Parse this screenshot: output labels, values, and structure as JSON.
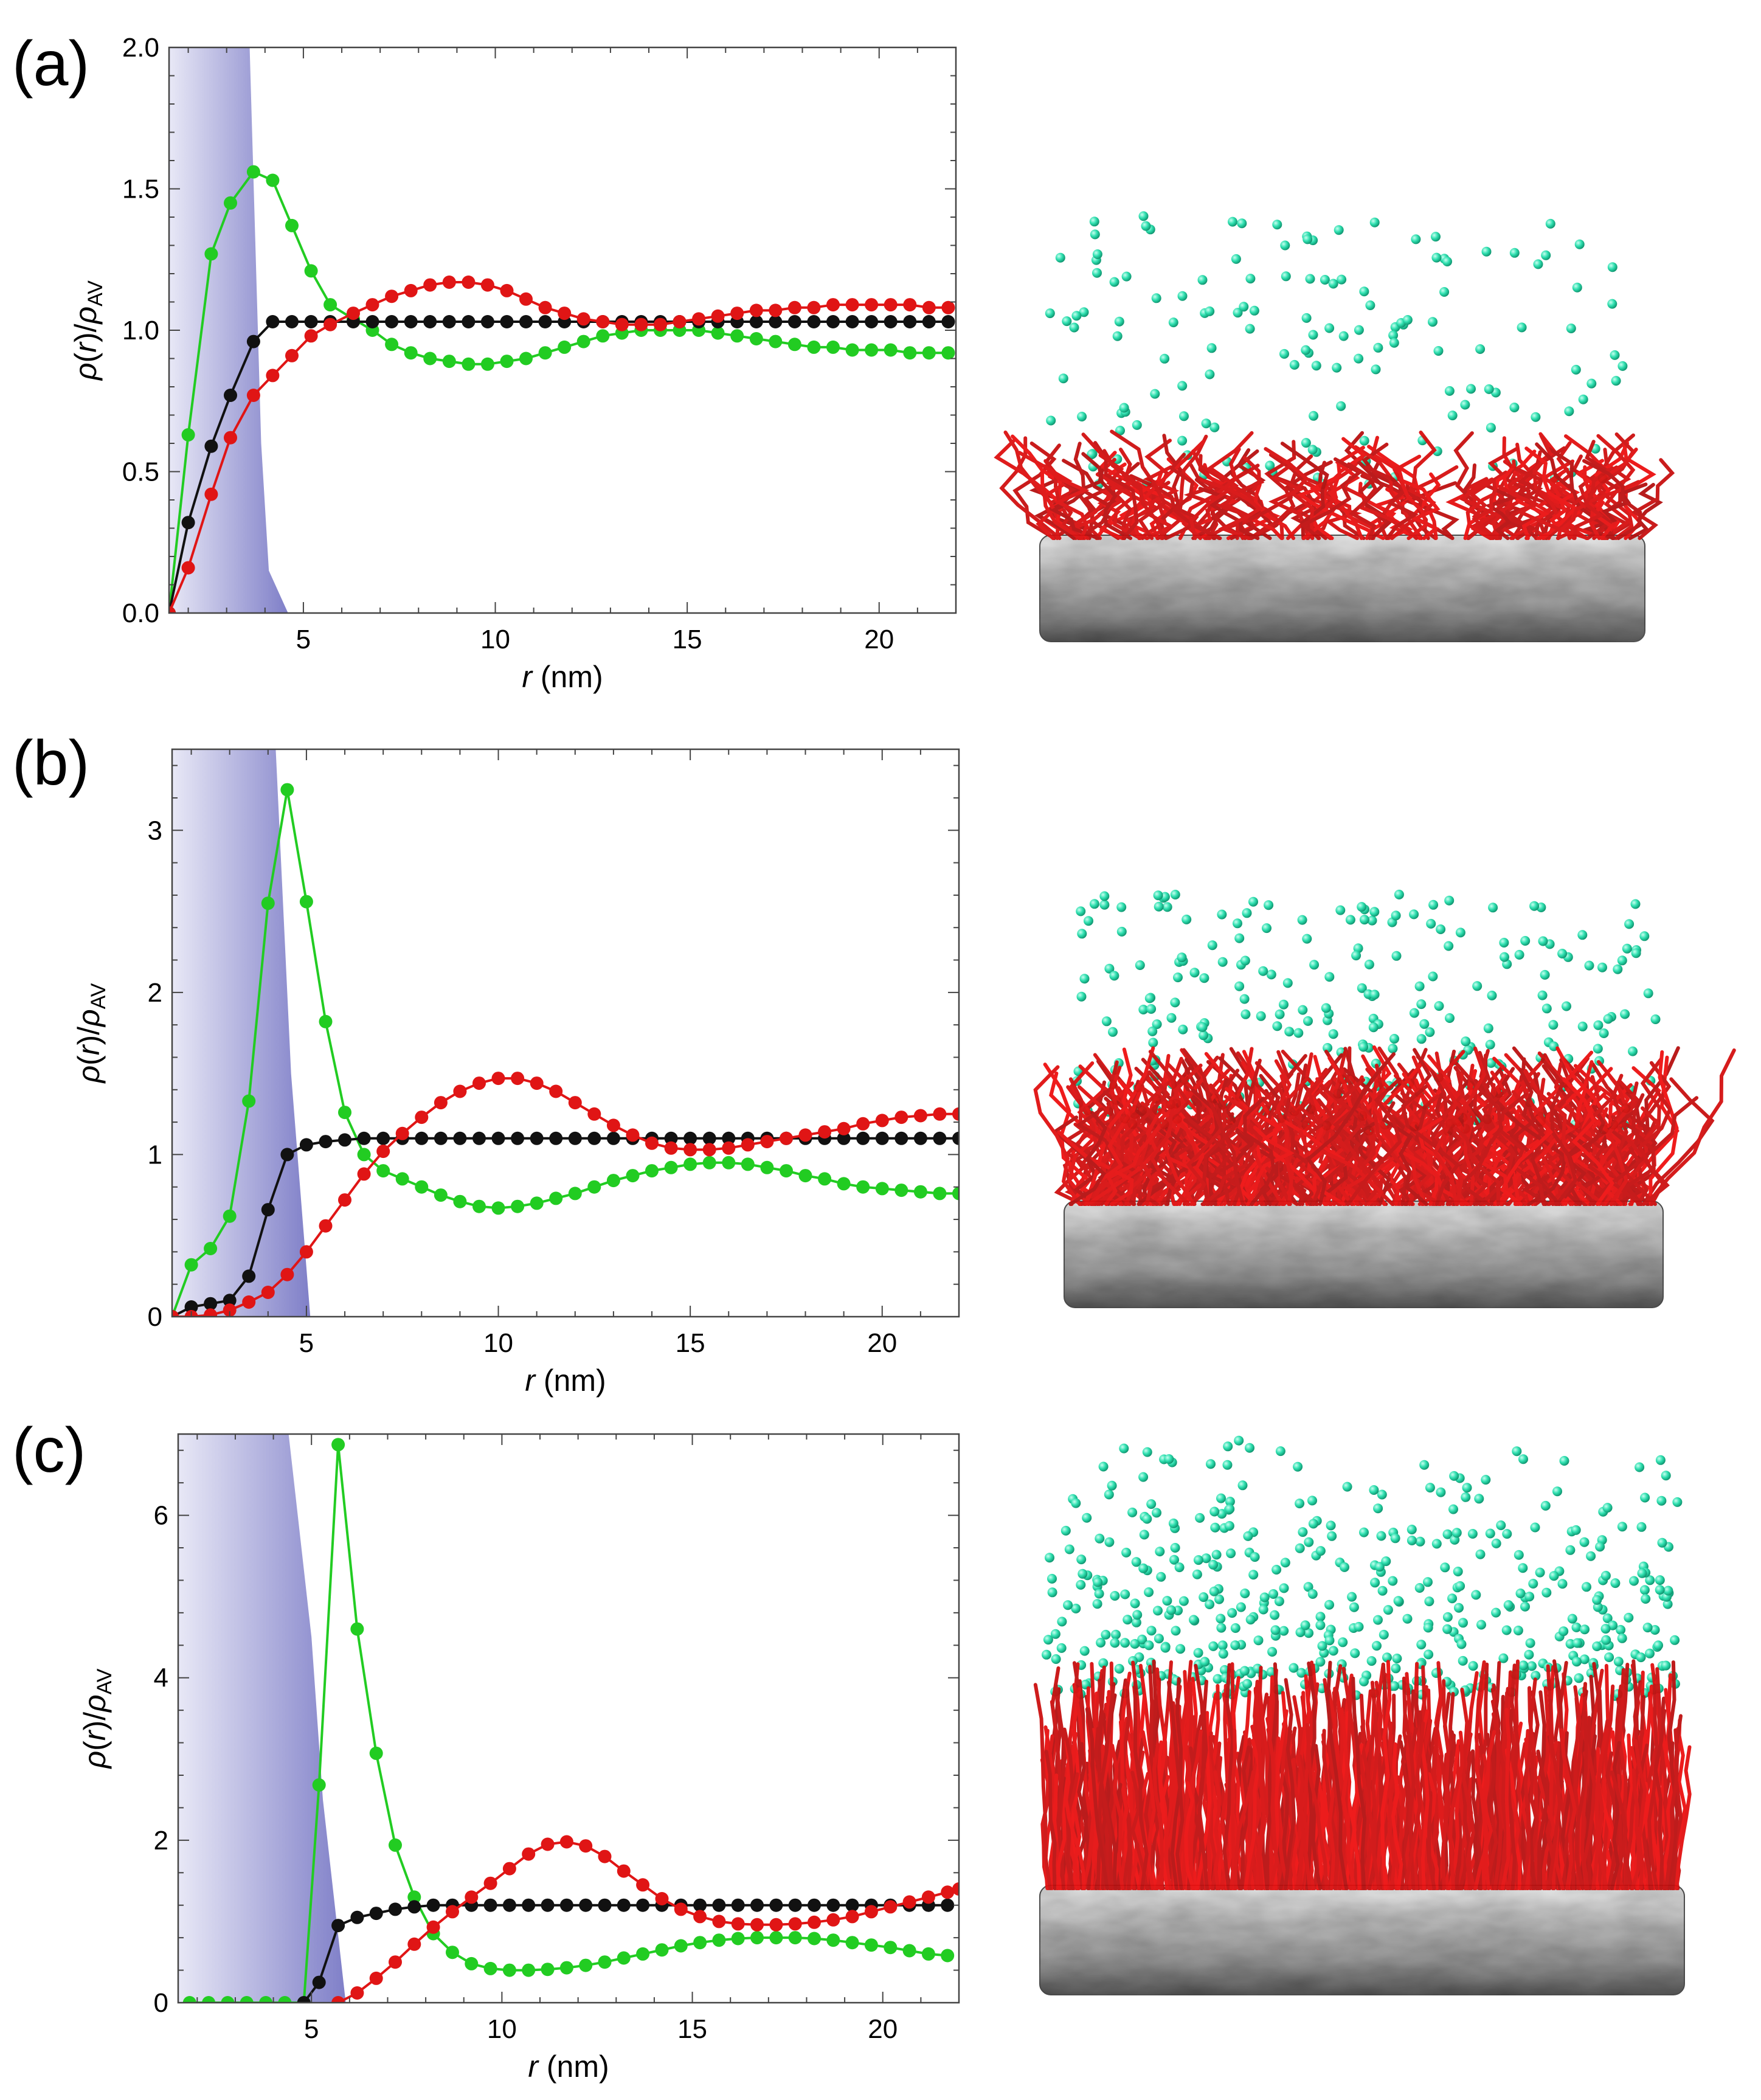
{
  "panels": [
    {
      "label": "(a)",
      "alt": "Snapshot (a): sparse red polymer chain clusters grafted on grey substrate slab with scattered cyan particles above"
    },
    {
      "label": "(b)",
      "alt": "Snapshot (b): denser red polymer brush layer on grey substrate slab with cyan particles above"
    },
    {
      "label": "(c)",
      "alt": "Snapshot (c): dense upright red polymer brush on grey substrate slab with many cyan particles above"
    }
  ],
  "chart_data": [
    {
      "type": "line",
      "panel": "(a)",
      "xlabel": "r (nm)",
      "xlabel_var": "r",
      "xlabel_unit": "(nm)",
      "ylabel": "ρ(r)/ρAV",
      "xlim": [
        1.5,
        22
      ],
      "ylim": [
        0,
        2.0
      ],
      "xticks": [
        5,
        10,
        15,
        20
      ],
      "yticks": [
        0.0,
        0.5,
        1.0,
        1.5,
        2.0
      ],
      "ytick_labels": [
        "0.0",
        "0.5",
        "1.0",
        "1.5",
        "2.0"
      ],
      "shaded_region": {
        "color": "#7f7fc8",
        "x": [
          1.5,
          3.6,
          3.9,
          4.1,
          4.6,
          1.5
        ],
        "y": [
          2.0,
          2.0,
          0.6,
          0.15,
          0.0,
          0.0
        ]
      },
      "series": [
        {
          "name": "green",
          "color": "#22cc22",
          "x": [
            1.5,
            2.0,
            2.6,
            3.1,
            3.7,
            4.2,
            4.7,
            5.2,
            5.7,
            6.3,
            6.8,
            7.3,
            7.8,
            8.3,
            8.8,
            9.3,
            9.8,
            10.3,
            10.8,
            11.3,
            11.8,
            12.3,
            12.8,
            13.3,
            13.8,
            14.3,
            14.8,
            15.3,
            15.8,
            16.3,
            16.8,
            17.3,
            17.8,
            18.3,
            18.8,
            19.3,
            19.8,
            20.3,
            20.8,
            21.3,
            21.8
          ],
          "y": [
            0.0,
            0.63,
            1.27,
            1.45,
            1.56,
            1.53,
            1.37,
            1.21,
            1.09,
            1.04,
            1.0,
            0.95,
            0.92,
            0.9,
            0.89,
            0.88,
            0.88,
            0.89,
            0.9,
            0.92,
            0.94,
            0.96,
            0.98,
            0.99,
            1.0,
            1.0,
            1.0,
            1.0,
            0.99,
            0.98,
            0.97,
            0.96,
            0.95,
            0.94,
            0.94,
            0.93,
            0.93,
            0.93,
            0.92,
            0.92,
            0.92
          ]
        },
        {
          "name": "black",
          "color": "#111111",
          "x": [
            1.5,
            2.0,
            2.6,
            3.1,
            3.7,
            4.2,
            4.7,
            5.2,
            5.7,
            6.3,
            6.8,
            7.3,
            7.8,
            8.3,
            8.8,
            9.3,
            9.8,
            10.3,
            10.8,
            11.3,
            11.8,
            12.3,
            12.8,
            13.3,
            13.8,
            14.3,
            14.8,
            15.3,
            15.8,
            16.3,
            16.8,
            17.3,
            17.8,
            18.3,
            18.8,
            19.3,
            19.8,
            20.3,
            20.8,
            21.3,
            21.8
          ],
          "y": [
            0.0,
            0.32,
            0.59,
            0.77,
            0.96,
            1.03,
            1.03,
            1.03,
            1.03,
            1.03,
            1.03,
            1.03,
            1.03,
            1.03,
            1.03,
            1.03,
            1.03,
            1.03,
            1.03,
            1.03,
            1.03,
            1.03,
            1.03,
            1.03,
            1.03,
            1.03,
            1.03,
            1.03,
            1.03,
            1.03,
            1.03,
            1.03,
            1.03,
            1.03,
            1.03,
            1.03,
            1.03,
            1.03,
            1.03,
            1.03,
            1.03
          ]
        },
        {
          "name": "red",
          "color": "#e01515",
          "x": [
            1.5,
            2.0,
            2.6,
            3.1,
            3.7,
            4.2,
            4.7,
            5.2,
            5.7,
            6.3,
            6.8,
            7.3,
            7.8,
            8.3,
            8.8,
            9.3,
            9.8,
            10.3,
            10.8,
            11.3,
            11.8,
            12.3,
            12.8,
            13.3,
            13.8,
            14.3,
            14.8,
            15.3,
            15.8,
            16.3,
            16.8,
            17.3,
            17.8,
            18.3,
            18.8,
            19.3,
            19.8,
            20.3,
            20.8,
            21.3,
            21.8
          ],
          "y": [
            0.0,
            0.16,
            0.42,
            0.62,
            0.77,
            0.84,
            0.91,
            0.98,
            1.02,
            1.06,
            1.09,
            1.12,
            1.14,
            1.16,
            1.17,
            1.17,
            1.16,
            1.14,
            1.11,
            1.08,
            1.06,
            1.04,
            1.03,
            1.02,
            1.02,
            1.02,
            1.03,
            1.04,
            1.05,
            1.06,
            1.07,
            1.07,
            1.08,
            1.08,
            1.09,
            1.09,
            1.09,
            1.09,
            1.09,
            1.08,
            1.08
          ]
        }
      ]
    },
    {
      "type": "line",
      "panel": "(b)",
      "xlabel": "r (nm)",
      "xlabel_var": "r",
      "xlabel_unit": "(nm)",
      "ylabel": "ρ(r)/ρAV",
      "xlim": [
        1.5,
        22
      ],
      "ylim": [
        0,
        3.5
      ],
      "xticks": [
        5,
        10,
        15,
        20
      ],
      "yticks": [
        0,
        1,
        2,
        3
      ],
      "ytick_labels": [
        "0",
        "1",
        "2",
        "3"
      ],
      "shaded_region": {
        "color": "#7f7fc8",
        "x": [
          1.5,
          4.2,
          4.6,
          5.1,
          1.5
        ],
        "y": [
          3.5,
          3.5,
          1.5,
          0.0,
          0.0
        ]
      },
      "series": [
        {
          "name": "green",
          "color": "#22cc22",
          "x": [
            1.5,
            2.0,
            2.5,
            3.0,
            3.5,
            4.0,
            4.5,
            5.0,
            5.5,
            6.0,
            6.5,
            7.0,
            7.5,
            8.0,
            8.5,
            9.0,
            9.5,
            10.0,
            10.5,
            11.0,
            11.5,
            12.0,
            12.5,
            13.0,
            13.5,
            14.0,
            14.5,
            15.0,
            15.5,
            16.0,
            16.5,
            17.0,
            17.5,
            18.0,
            18.5,
            19.0,
            19.5,
            20.0,
            20.5,
            21.0,
            21.5,
            22.0
          ],
          "y": [
            0.0,
            0.32,
            0.42,
            0.62,
            1.33,
            2.55,
            3.25,
            2.56,
            1.82,
            1.26,
            1.0,
            0.9,
            0.85,
            0.8,
            0.75,
            0.71,
            0.68,
            0.67,
            0.68,
            0.7,
            0.73,
            0.76,
            0.8,
            0.84,
            0.87,
            0.9,
            0.92,
            0.94,
            0.95,
            0.95,
            0.94,
            0.92,
            0.9,
            0.87,
            0.85,
            0.82,
            0.8,
            0.79,
            0.78,
            0.77,
            0.76,
            0.76
          ]
        },
        {
          "name": "black",
          "color": "#111111",
          "x": [
            1.5,
            2.0,
            2.5,
            3.0,
            3.5,
            4.0,
            4.5,
            5.0,
            5.5,
            6.0,
            6.5,
            7.0,
            7.5,
            8.0,
            8.5,
            9.0,
            9.5,
            10.0,
            10.5,
            11.0,
            11.5,
            12.0,
            12.5,
            13.0,
            13.5,
            14.0,
            14.5,
            15.0,
            15.5,
            16.0,
            16.5,
            17.0,
            17.5,
            18.0,
            18.5,
            19.0,
            19.5,
            20.0,
            20.5,
            21.0,
            21.5,
            22.0
          ],
          "y": [
            0.0,
            0.06,
            0.08,
            0.1,
            0.25,
            0.66,
            1.0,
            1.06,
            1.08,
            1.09,
            1.1,
            1.1,
            1.1,
            1.1,
            1.1,
            1.1,
            1.1,
            1.1,
            1.1,
            1.1,
            1.1,
            1.1,
            1.1,
            1.1,
            1.1,
            1.1,
            1.1,
            1.1,
            1.1,
            1.1,
            1.1,
            1.1,
            1.1,
            1.1,
            1.1,
            1.1,
            1.1,
            1.1,
            1.1,
            1.1,
            1.1,
            1.1
          ]
        },
        {
          "name": "red",
          "color": "#e01515",
          "x": [
            1.5,
            2.0,
            2.5,
            3.0,
            3.5,
            4.0,
            4.5,
            5.0,
            5.5,
            6.0,
            6.5,
            7.0,
            7.5,
            8.0,
            8.5,
            9.0,
            9.5,
            10.0,
            10.5,
            11.0,
            11.5,
            12.0,
            12.5,
            13.0,
            13.5,
            14.0,
            14.5,
            15.0,
            15.5,
            16.0,
            16.5,
            17.0,
            17.5,
            18.0,
            18.5,
            19.0,
            19.5,
            20.0,
            20.5,
            21.0,
            21.5,
            22.0
          ],
          "y": [
            0.0,
            0.0,
            0.01,
            0.04,
            0.09,
            0.15,
            0.26,
            0.4,
            0.56,
            0.72,
            0.88,
            1.02,
            1.13,
            1.23,
            1.32,
            1.39,
            1.44,
            1.47,
            1.47,
            1.44,
            1.39,
            1.32,
            1.25,
            1.18,
            1.12,
            1.07,
            1.04,
            1.03,
            1.03,
            1.04,
            1.06,
            1.08,
            1.1,
            1.12,
            1.14,
            1.16,
            1.19,
            1.21,
            1.23,
            1.24,
            1.25,
            1.25
          ]
        }
      ]
    },
    {
      "type": "line",
      "panel": "(c)",
      "xlabel": "r (nm)",
      "xlabel_var": "r",
      "xlabel_unit": "(nm)",
      "ylabel": "ρ(r)/ρAV",
      "xlim": [
        1.5,
        22
      ],
      "ylim": [
        0,
        7.0
      ],
      "xticks": [
        5,
        10,
        15,
        20
      ],
      "yticks": [
        0,
        2,
        4,
        6
      ],
      "ytick_labels": [
        "0",
        "2",
        "4",
        "6"
      ],
      "shaded_region": {
        "color": "#7f7fc8",
        "x": [
          1.5,
          4.4,
          5.0,
          5.3,
          5.9,
          1.5
        ],
        "y": [
          7.0,
          7.0,
          4.5,
          2.5,
          0.0,
          0.0
        ]
      },
      "series": [
        {
          "name": "green",
          "color": "#22cc22",
          "x": [
            1.8,
            2.3,
            2.8,
            3.3,
            3.8,
            4.3,
            4.8,
            5.2,
            5.7,
            6.2,
            6.7,
            7.2,
            7.7,
            8.2,
            8.7,
            9.2,
            9.7,
            10.2,
            10.7,
            11.2,
            11.7,
            12.2,
            12.7,
            13.2,
            13.7,
            14.2,
            14.7,
            15.2,
            15.7,
            16.2,
            16.7,
            17.2,
            17.7,
            18.2,
            18.7,
            19.2,
            19.7,
            20.2,
            20.7,
            21.2,
            21.7
          ],
          "y": [
            0.0,
            0.0,
            0.0,
            0.0,
            0.0,
            0.0,
            0.0,
            2.68,
            6.87,
            4.6,
            3.07,
            1.94,
            1.3,
            0.85,
            0.62,
            0.48,
            0.42,
            0.4,
            0.4,
            0.41,
            0.43,
            0.46,
            0.5,
            0.55,
            0.6,
            0.65,
            0.7,
            0.74,
            0.77,
            0.79,
            0.8,
            0.8,
            0.8,
            0.79,
            0.77,
            0.74,
            0.71,
            0.68,
            0.64,
            0.6,
            0.58
          ]
        },
        {
          "name": "black",
          "color": "#111111",
          "x": [
            4.8,
            5.2,
            5.7,
            6.2,
            6.7,
            7.2,
            7.7,
            8.2,
            8.7,
            9.2,
            9.7,
            10.2,
            10.7,
            11.2,
            11.7,
            12.2,
            12.7,
            13.2,
            13.7,
            14.2,
            14.7,
            15.2,
            15.7,
            16.2,
            16.7,
            17.2,
            17.7,
            18.2,
            18.7,
            19.2,
            19.7,
            20.2,
            20.7,
            21.2,
            21.7
          ],
          "y": [
            0.0,
            0.25,
            0.95,
            1.05,
            1.1,
            1.15,
            1.18,
            1.2,
            1.2,
            1.2,
            1.2,
            1.2,
            1.2,
            1.2,
            1.2,
            1.2,
            1.2,
            1.2,
            1.2,
            1.2,
            1.2,
            1.2,
            1.2,
            1.2,
            1.2,
            1.2,
            1.2,
            1.2,
            1.2,
            1.2,
            1.2,
            1.2,
            1.2,
            1.2,
            1.2
          ]
        },
        {
          "name": "red",
          "color": "#e01515",
          "x": [
            5.7,
            6.2,
            6.7,
            7.2,
            7.7,
            8.2,
            8.7,
            9.2,
            9.7,
            10.2,
            10.7,
            11.2,
            11.7,
            12.2,
            12.7,
            13.2,
            13.7,
            14.2,
            14.7,
            15.2,
            15.7,
            16.2,
            16.7,
            17.2,
            17.7,
            18.2,
            18.7,
            19.2,
            19.7,
            20.2,
            20.7,
            21.2,
            21.7,
            22.0
          ],
          "y": [
            0.0,
            0.12,
            0.3,
            0.5,
            0.72,
            0.93,
            1.12,
            1.3,
            1.47,
            1.65,
            1.83,
            1.95,
            1.98,
            1.93,
            1.8,
            1.62,
            1.45,
            1.28,
            1.15,
            1.06,
            1.0,
            0.97,
            0.96,
            0.96,
            0.97,
            0.99,
            1.02,
            1.06,
            1.12,
            1.18,
            1.24,
            1.3,
            1.36,
            1.4
          ]
        }
      ]
    }
  ]
}
